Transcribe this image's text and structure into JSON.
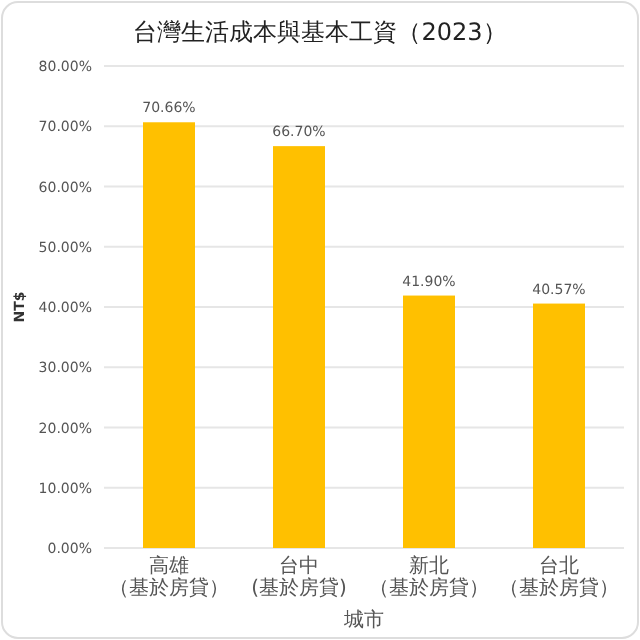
{
  "chart_data": {
    "type": "bar",
    "title": "台灣生活成本與基本工資（2023）",
    "xlabel": "城市",
    "ylabel": "NT$",
    "categories": [
      "高雄（基於房貸）",
      "台中(基於房貸)",
      "新北（基於房貸）",
      "台北（基於房貸）"
    ],
    "values": [
      70.66,
      66.7,
      41.9,
      40.57
    ],
    "value_labels": [
      "70.66%",
      "66.70%",
      "41.90%",
      "40.57%"
    ],
    "color": "#ffc000",
    "ylim": [
      0,
      80
    ],
    "yticks": [
      {
        "value": 0,
        "label": "0.00%"
      },
      {
        "value": 10,
        "label": "10.00%"
      },
      {
        "value": 20,
        "label": "20.00%"
      },
      {
        "value": 30,
        "label": "30.00%"
      },
      {
        "value": 40,
        "label": "40.00%"
      },
      {
        "value": 50,
        "label": "50.00%"
      },
      {
        "value": 60,
        "label": "60.00%"
      },
      {
        "value": 70,
        "label": "70.00%"
      },
      {
        "value": 80,
        "label": "80.00%"
      }
    ],
    "grid": "y"
  }
}
